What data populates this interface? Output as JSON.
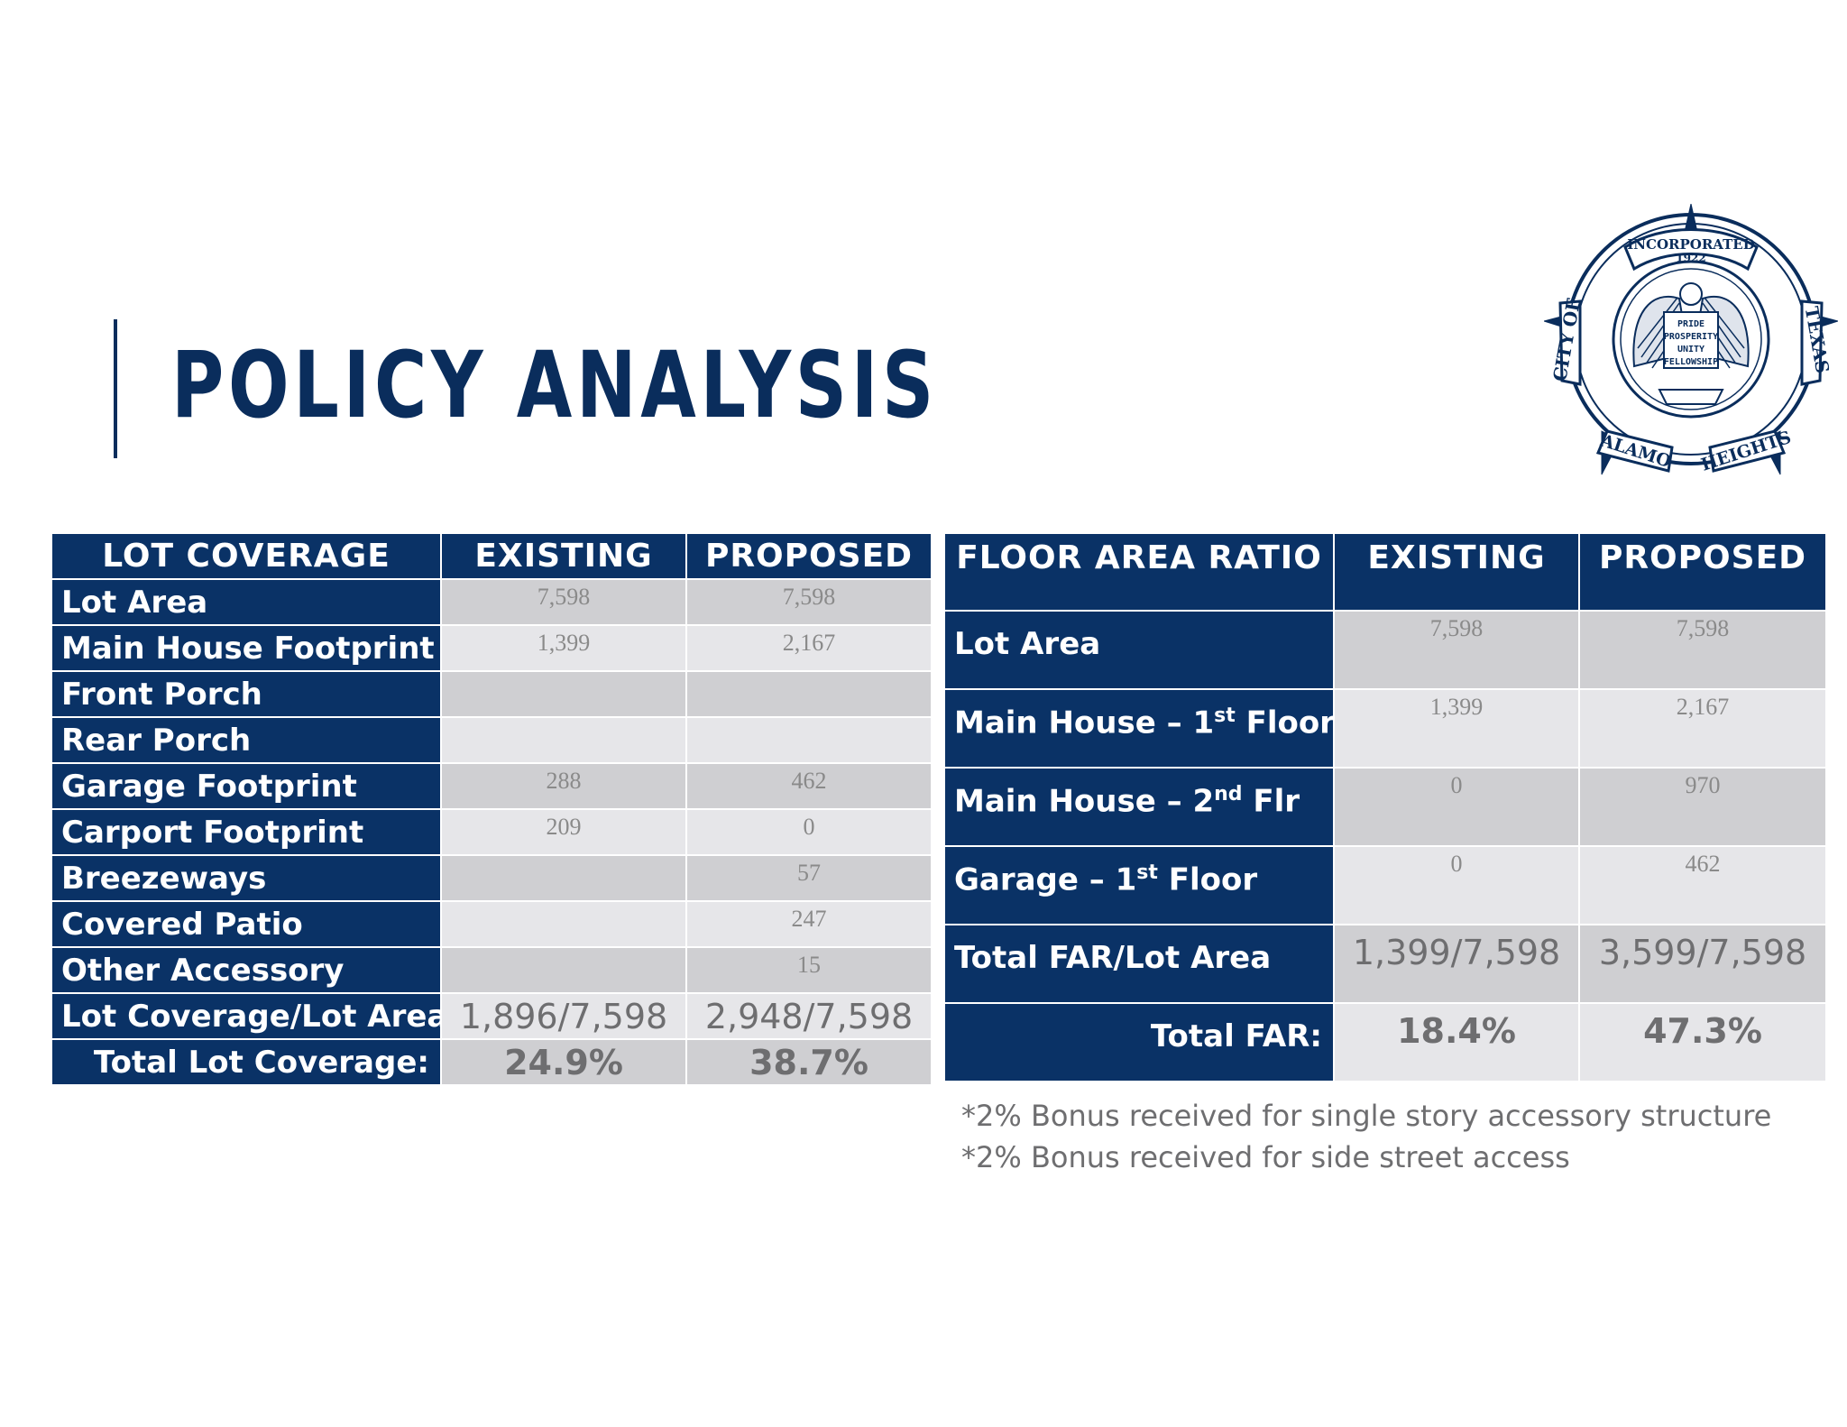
{
  "title": "POLICY ANALYSIS",
  "seal": {
    "top_text": "INCORPORATED",
    "year": "1922",
    "left_text": "CITY OF",
    "right_text": "TEXAS",
    "bottom_left": "ALAMO",
    "bottom_right": "HEIGHTS",
    "motto": [
      "PRIDE",
      "PROSPERITY",
      "UNITY",
      "FELLOWSHIP"
    ]
  },
  "lot_coverage": {
    "headers": [
      "LOT COVERAGE",
      "EXISTING",
      "PROPOSED"
    ],
    "rows": [
      {
        "label": "Lot Area",
        "existing": "7,598",
        "proposed": "7,598"
      },
      {
        "label": "Main House Footprint",
        "existing": "1,399",
        "proposed": "2,167"
      },
      {
        "label": "Front Porch",
        "existing": "",
        "proposed": ""
      },
      {
        "label": "Rear Porch",
        "existing": "",
        "proposed": ""
      },
      {
        "label": "Garage Footprint",
        "existing": "288",
        "proposed": "462"
      },
      {
        "label": "Carport Footprint",
        "existing": "209",
        "proposed": "0"
      },
      {
        "label": "Breezeways",
        "existing": "",
        "proposed": "57"
      },
      {
        "label": "Covered Patio",
        "existing": "",
        "proposed": "247"
      },
      {
        "label": "Other Accessory",
        "existing": "",
        "proposed": "15"
      },
      {
        "label": "Lot Coverage/Lot Area",
        "existing": "1,896/7,598",
        "proposed": "2,948/7,598"
      },
      {
        "label": "Total Lot Coverage:",
        "existing": "24.9%",
        "proposed": "38.7%"
      }
    ]
  },
  "floor_area_ratio": {
    "headers": [
      "FLOOR AREA RATIO",
      "EXISTING",
      "PROPOSED"
    ],
    "rows": [
      {
        "label": "Lot Area",
        "existing": "7,598",
        "proposed": "7,598"
      },
      {
        "label_main": "Main House – 1",
        "label_sup": "st",
        "label_end": " Floor",
        "existing": "1,399",
        "proposed": "2,167"
      },
      {
        "label_main": "Main House – 2",
        "label_sup": "nd",
        "label_end": " Flr",
        "existing": "0",
        "proposed": "970"
      },
      {
        "label_main": "Garage – 1",
        "label_sup": "st",
        "label_end": " Floor",
        "existing": "0",
        "proposed": "462"
      },
      {
        "label": "Total FAR/Lot Area",
        "existing": "1,399/7,598",
        "proposed": "3,599/7,598"
      },
      {
        "label": "Total FAR:",
        "existing": "18.4%",
        "proposed": "47.3%"
      }
    ]
  },
  "notes": [
    "*2% Bonus received for single story accessory structure",
    "*2% Bonus received for side street access"
  ]
}
